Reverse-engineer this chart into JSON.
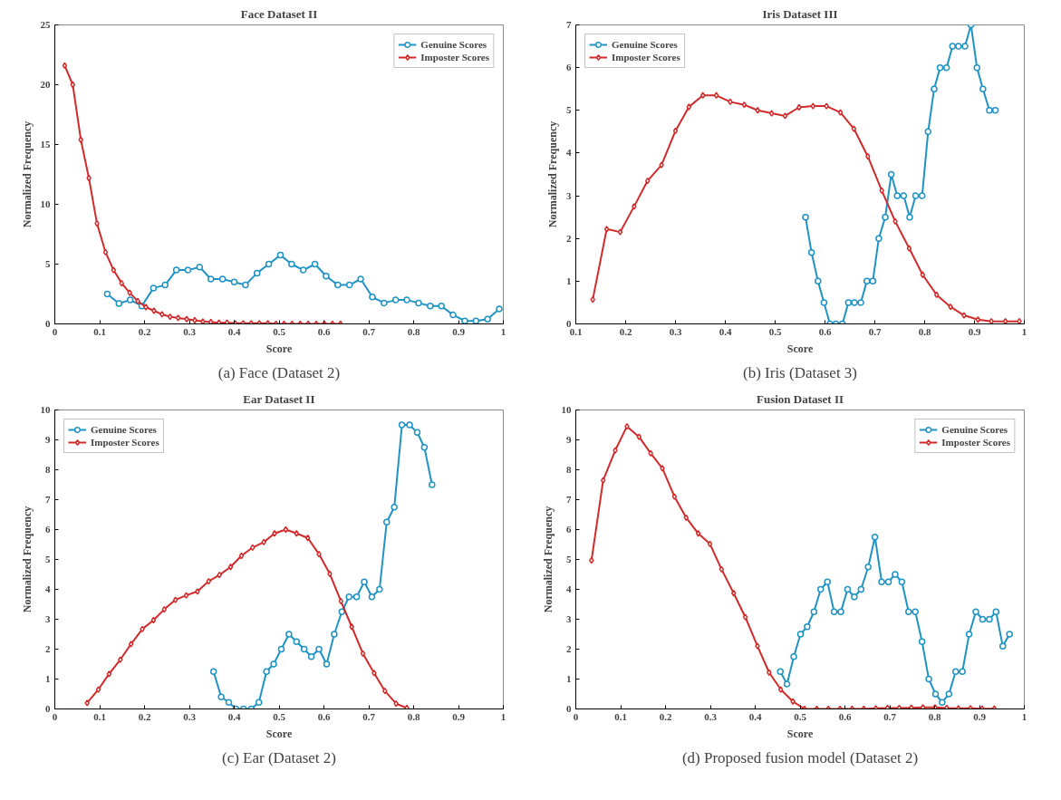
{
  "chart_data": [
    {
      "type": "line",
      "title": "Face Dataset II",
      "xlabel": "Score",
      "ylabel": "Normalized Frequency",
      "annotations": [
        "(a) Face (Dataset 2)"
      ],
      "xlim": [
        0,
        1
      ],
      "ylim": [
        0,
        25
      ],
      "xticks": [
        0,
        0.1,
        0.2,
        0.3,
        0.4,
        0.5,
        0.6,
        0.7,
        0.8,
        0.9,
        1
      ],
      "yticks": [
        0,
        5,
        10,
        15,
        20,
        25
      ],
      "grid": false,
      "legend": "top right",
      "series": [
        {
          "name": "Genuine Scores",
          "color": "#1f94c4",
          "marker": "circle",
          "x": [
            0.117,
            0.143,
            0.168,
            0.194,
            0.22,
            0.246,
            0.271,
            0.297,
            0.323,
            0.348,
            0.374,
            0.4,
            0.425,
            0.451,
            0.477,
            0.503,
            0.528,
            0.554,
            0.58,
            0.605,
            0.631,
            0.657,
            0.682,
            0.708,
            0.734,
            0.76,
            0.785,
            0.811,
            0.837,
            0.862,
            0.888,
            0.914,
            0.939,
            0.965,
            0.991
          ],
          "values": [
            2.5,
            1.7,
            2.0,
            1.5,
            3.0,
            3.25,
            4.5,
            4.5,
            4.75,
            3.75,
            3.75,
            3.5,
            3.25,
            4.25,
            5.0,
            5.75,
            5.0,
            4.5,
            5.0,
            4.0,
            3.25,
            3.25,
            3.75,
            2.25,
            1.75,
            2.0,
            2.0,
            1.75,
            1.5,
            1.5,
            0.75,
            0.25,
            0.25,
            0.4,
            1.25
          ]
        },
        {
          "name": "Imposter Scores",
          "color": "#d12b2b",
          "marker": "diamond",
          "x": [
            0.022,
            0.04,
            0.058,
            0.076,
            0.094,
            0.113,
            0.131,
            0.149,
            0.167,
            0.185,
            0.203,
            0.221,
            0.239,
            0.257,
            0.275,
            0.294,
            0.312,
            0.33,
            0.348,
            0.366,
            0.384,
            0.402,
            0.42,
            0.438,
            0.456,
            0.475,
            0.493,
            0.511,
            0.529,
            0.547,
            0.565,
            0.583,
            0.601,
            0.619,
            0.637
          ],
          "values": [
            21.6,
            20,
            15.4,
            12.2,
            8.4,
            6.0,
            4.5,
            3.4,
            2.6,
            1.9,
            1.4,
            1.1,
            0.8,
            0.6,
            0.5,
            0.4,
            0.3,
            0.2,
            0.15,
            0.1,
            0.1,
            0.05,
            0.05,
            0.05,
            0.05,
            0.05,
            0,
            0,
            0,
            0,
            0,
            0,
            0,
            0,
            0
          ]
        }
      ]
    },
    {
      "type": "line",
      "title": "Iris Dataset III",
      "xlabel": "Score",
      "ylabel": "Normalized Frequency",
      "annotations": [
        "(b) Iris (Dataset 3)"
      ],
      "xlim": [
        0.1,
        1
      ],
      "ylim": [
        0,
        7
      ],
      "xticks": [
        0.1,
        0.2,
        0.3,
        0.4,
        0.5,
        0.6,
        0.7,
        0.8,
        0.9,
        1
      ],
      "yticks": [
        0,
        1,
        2,
        3,
        4,
        5,
        6,
        7
      ],
      "grid": false,
      "legend": "top left",
      "series": [
        {
          "name": "Genuine Scores",
          "color": "#1f94c4",
          "marker": "circle",
          "x": [
            0.561,
            0.573,
            0.586,
            0.598,
            0.61,
            0.622,
            0.635,
            0.647,
            0.659,
            0.672,
            0.684,
            0.696,
            0.708,
            0.721,
            0.733,
            0.745,
            0.758,
            0.77,
            0.782,
            0.795,
            0.807,
            0.819,
            0.831,
            0.844,
            0.856,
            0.868,
            0.881,
            0.893,
            0.905,
            0.917,
            0.93,
            0.942
          ],
          "values": [
            2.5,
            1.67,
            1.0,
            0.5,
            0,
            0,
            0,
            0.5,
            0.5,
            0.5,
            1.0,
            1.0,
            2.0,
            2.5,
            3.5,
            3.0,
            3.0,
            2.5,
            3.0,
            3.0,
            4.5,
            5.5,
            6.0,
            6.0,
            6.5,
            6.5,
            6.5,
            7.0,
            6.0,
            5.5,
            5.0,
            5.0
          ]
        },
        {
          "name": "Imposter Scores",
          "color": "#d12b2b",
          "marker": "diamond",
          "x": [
            0.134,
            0.162,
            0.189,
            0.217,
            0.244,
            0.272,
            0.3,
            0.327,
            0.355,
            0.382,
            0.41,
            0.438,
            0.465,
            0.493,
            0.52,
            0.548,
            0.576,
            0.603,
            0.631,
            0.658,
            0.686,
            0.714,
            0.741,
            0.769,
            0.796,
            0.824,
            0.852,
            0.879,
            0.907,
            0.934,
            0.962,
            0.99
          ],
          "values": [
            0.57,
            2.22,
            2.15,
            2.75,
            3.35,
            3.72,
            4.52,
            5.08,
            5.35,
            5.35,
            5.2,
            5.13,
            5.0,
            4.93,
            4.87,
            5.07,
            5.1,
            5.1,
            4.95,
            4.57,
            3.92,
            3.12,
            2.4,
            1.77,
            1.15,
            0.68,
            0.4,
            0.2,
            0.1,
            0.06,
            0.06,
            0.06
          ]
        }
      ]
    },
    {
      "type": "line",
      "title": "Ear Dataset II",
      "xlabel": "Score",
      "ylabel": "Normalized Frequency",
      "annotations": [
        "(c) Ear (Dataset 2)"
      ],
      "xlim": [
        0,
        1
      ],
      "ylim": [
        0,
        10
      ],
      "xticks": [
        0,
        0.1,
        0.2,
        0.3,
        0.4,
        0.5,
        0.6,
        0.7,
        0.8,
        0.9,
        1
      ],
      "yticks": [
        0,
        1,
        2,
        3,
        4,
        5,
        6,
        7,
        8,
        9,
        10
      ],
      "grid": false,
      "legend": "top left",
      "series": [
        {
          "name": "Genuine Scores",
          "color": "#1f94c4",
          "marker": "circle",
          "x": [
            0.354,
            0.371,
            0.388,
            0.404,
            0.421,
            0.438,
            0.455,
            0.472,
            0.488,
            0.505,
            0.522,
            0.539,
            0.556,
            0.572,
            0.589,
            0.606,
            0.623,
            0.64,
            0.656,
            0.673,
            0.69,
            0.707,
            0.724,
            0.74,
            0.757,
            0.774,
            0.791,
            0.808,
            0.824,
            0.841
          ],
          "values": [
            1.25,
            0.4,
            0.22,
            0,
            0,
            0,
            0.22,
            1.25,
            1.5,
            2.0,
            2.5,
            2.25,
            2.0,
            1.75,
            2.0,
            1.5,
            2.5,
            3.25,
            3.75,
            3.75,
            4.25,
            3.75,
            4.0,
            6.25,
            6.75,
            9.5,
            9.5,
            9.25,
            8.75,
            7.5
          ]
        },
        {
          "name": "Imposter Scores",
          "color": "#d12b2b",
          "marker": "diamond",
          "x": [
            0.072,
            0.097,
            0.121,
            0.146,
            0.17,
            0.195,
            0.22,
            0.244,
            0.269,
            0.293,
            0.318,
            0.343,
            0.367,
            0.392,
            0.416,
            0.441,
            0.466,
            0.49,
            0.515,
            0.539,
            0.564,
            0.589,
            0.613,
            0.638,
            0.662,
            0.687,
            0.712,
            0.736,
            0.761,
            0.785
          ],
          "values": [
            0.2,
            0.65,
            1.17,
            1.65,
            2.17,
            2.67,
            2.97,
            3.33,
            3.65,
            3.8,
            3.93,
            4.27,
            4.48,
            4.75,
            5.12,
            5.4,
            5.58,
            5.87,
            6.0,
            5.87,
            5.72,
            5.18,
            4.52,
            3.6,
            2.75,
            1.85,
            1.2,
            0.6,
            0.18,
            0.03
          ]
        }
      ]
    },
    {
      "type": "line",
      "title": "Fusion Dataset II",
      "xlabel": "Score",
      "ylabel": "Normalized Frequency",
      "annotations": [
        "(d) Proposed fusion model (Dataset 2)"
      ],
      "xlim": [
        0,
        1
      ],
      "ylim": [
        0,
        10
      ],
      "xticks": [
        0,
        0.1,
        0.2,
        0.3,
        0.4,
        0.5,
        0.6,
        0.7,
        0.8,
        0.9,
        1
      ],
      "yticks": [
        0,
        1,
        2,
        3,
        4,
        5,
        6,
        7,
        8,
        9,
        10
      ],
      "grid": false,
      "legend": "top right",
      "series": [
        {
          "name": "Genuine Scores",
          "color": "#1f94c4",
          "marker": "circle",
          "x": [
            0.456,
            0.471,
            0.486,
            0.501,
            0.516,
            0.531,
            0.546,
            0.561,
            0.576,
            0.591,
            0.606,
            0.621,
            0.636,
            0.652,
            0.667,
            0.682,
            0.697,
            0.712,
            0.727,
            0.742,
            0.757,
            0.772,
            0.787,
            0.802,
            0.817,
            0.832,
            0.847,
            0.862,
            0.877,
            0.892,
            0.907,
            0.922,
            0.937,
            0.952,
            0.967
          ],
          "values": [
            1.25,
            0.83,
            1.75,
            2.5,
            2.75,
            3.25,
            4.0,
            4.25,
            3.25,
            3.25,
            4.0,
            3.75,
            4.0,
            4.75,
            5.75,
            4.25,
            4.25,
            4.5,
            4.25,
            3.25,
            3.25,
            2.25,
            1.0,
            0.5,
            0.22,
            0.5,
            1.25,
            1.25,
            2.5,
            3.25,
            3.0,
            3.0,
            3.25,
            2.1,
            2.5
          ]
        },
        {
          "name": "Imposter Scores",
          "color": "#d12b2b",
          "marker": "diamond",
          "x": [
            0.035,
            0.061,
            0.088,
            0.114,
            0.141,
            0.167,
            0.193,
            0.22,
            0.246,
            0.273,
            0.299,
            0.325,
            0.352,
            0.378,
            0.405,
            0.431,
            0.457,
            0.484,
            0.51,
            0.537,
            0.563,
            0.589,
            0.616,
            0.642,
            0.669,
            0.695,
            0.721,
            0.748,
            0.774,
            0.801,
            0.827,
            0.853,
            0.88,
            0.906,
            0.933
          ],
          "values": [
            4.97,
            7.65,
            8.65,
            9.45,
            9.1,
            8.55,
            8.05,
            7.1,
            6.4,
            5.87,
            5.52,
            4.67,
            3.87,
            3.07,
            2.1,
            1.22,
            0.65,
            0.25,
            0,
            0,
            0,
            0,
            0,
            0,
            0.02,
            0.03,
            0.03,
            0.04,
            0.05,
            0.05,
            0.03,
            0.02,
            0.02,
            0.01,
            0.01
          ]
        }
      ]
    }
  ]
}
